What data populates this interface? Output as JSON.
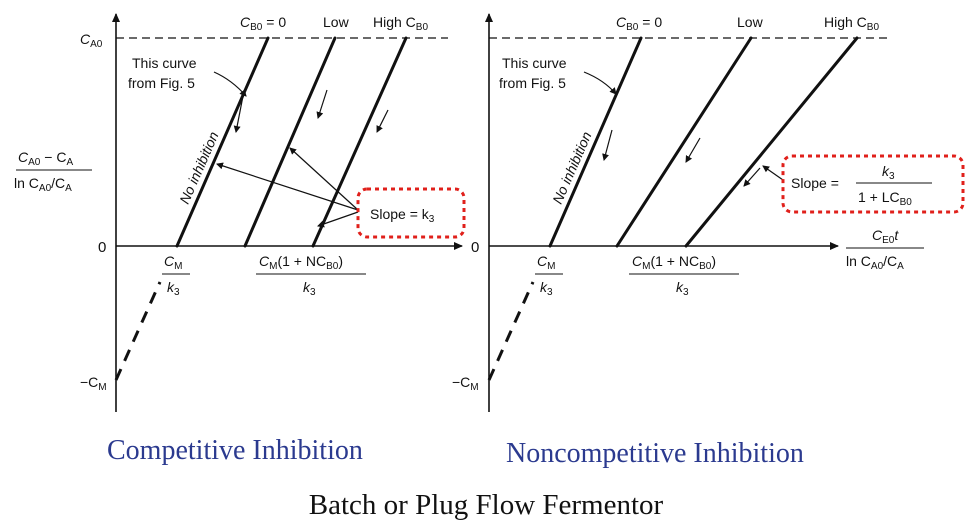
{
  "left_panel": {
    "caption": "Competitive Inhibition",
    "y_axis_top": "C",
    "y_axis_top_sub": "A0",
    "y_axis_label_num": "C",
    "y_axis_label_num_sub": "A0",
    "y_axis_label_num_rest": " − C",
    "y_axis_label_num_sub2": "A",
    "y_axis_label_den": "ln C",
    "y_axis_label_den_sub": "A0",
    "y_axis_label_den_rest": "/C",
    "y_axis_label_den_sub2": "A",
    "zero": "0",
    "neg_cm": "−C",
    "neg_cm_sub": "M",
    "curve_top_1": "C",
    "curve_top_1_sub": "B0",
    "curve_top_1_rest": " = 0",
    "curve_top_2": "Low",
    "curve_top_3": "High C",
    "curve_top_3_sub": "B0",
    "note_line1": "This curve",
    "note_line2": "from Fig. 5",
    "line_label": "No inhibition",
    "x_tick1_num": "C",
    "x_tick1_num_sub": "M",
    "x_tick1_den": "k",
    "x_tick1_den_sub": "3",
    "x_tick2_num": "C",
    "x_tick2_num_sub": "M",
    "x_tick2_num_rest": "(1 + NC",
    "x_tick2_num_sub2": "B0",
    "x_tick2_num_end": ")",
    "x_tick2_den": "k",
    "x_tick2_den_sub": "3",
    "slope_label": "Slope = k",
    "slope_label_sub": "3"
  },
  "right_panel": {
    "caption": "Noncompetitive Inhibition",
    "zero": "0",
    "neg_cm": "−C",
    "neg_cm_sub": "M",
    "curve_top_1": "C",
    "curve_top_1_sub": "B0",
    "curve_top_1_rest": " = 0",
    "curve_top_2": "Low",
    "curve_top_3": "High C",
    "curve_top_3_sub": "B0",
    "note_line1": "This curve",
    "note_line2": "from Fig. 5",
    "line_label": "No inhibition",
    "x_tick1_num": "C",
    "x_tick1_num_sub": "M",
    "x_tick1_den": "k",
    "x_tick1_den_sub": "3",
    "x_tick2_num": "C",
    "x_tick2_num_sub": "M",
    "x_tick2_num_rest": "(1 + NC",
    "x_tick2_num_sub2": "B0",
    "x_tick2_num_end": ")",
    "x_tick2_den": "k",
    "x_tick2_den_sub": "3",
    "x_axis_label_num": "C",
    "x_axis_label_num_sub": "E0",
    "x_axis_label_num_rest": "t",
    "x_axis_label_den": "ln C",
    "x_axis_label_den_sub": "A0",
    "x_axis_label_den_rest": "/C",
    "x_axis_label_den_sub2": "A",
    "slope_prefix": "Slope = ",
    "slope_num": "k",
    "slope_num_sub": "3",
    "slope_den": "1 + LC",
    "slope_den_sub": "B0"
  },
  "footer": {
    "title": "Batch or Plug Flow Fermentor"
  },
  "colors": {
    "highlight_box": "#e0201b",
    "caption_text": "#2b3a8f"
  }
}
